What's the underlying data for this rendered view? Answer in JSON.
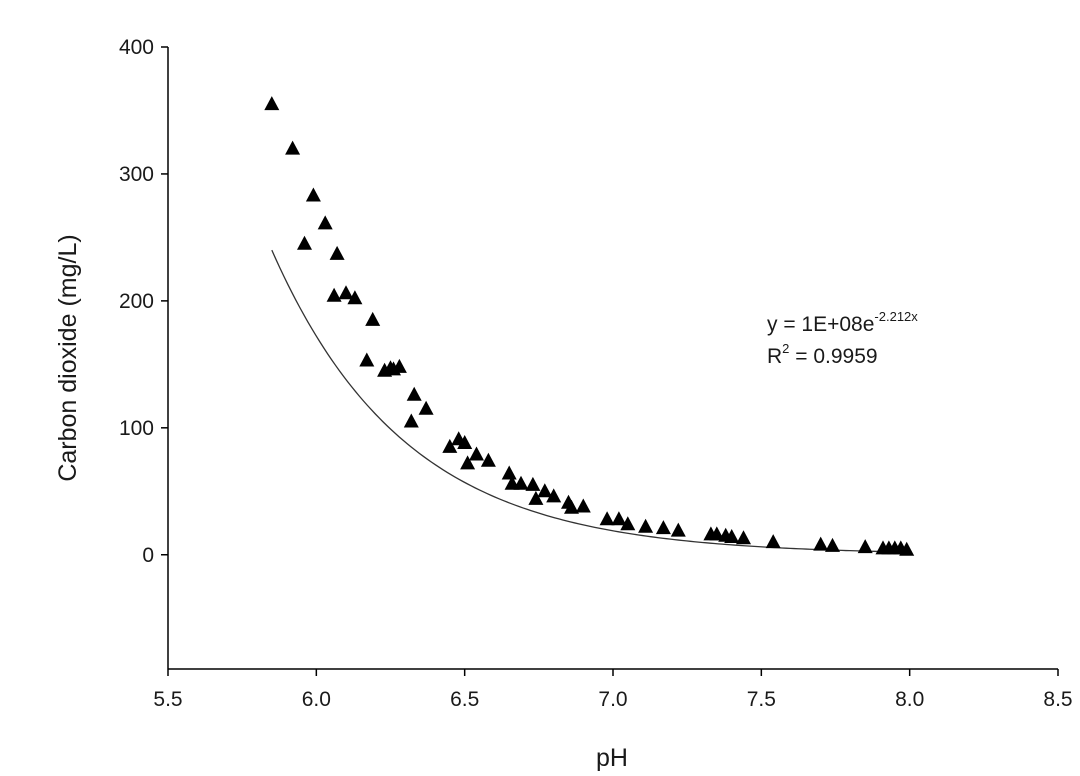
{
  "chart_data": {
    "type": "scatter",
    "title": "",
    "xlabel": "pH",
    "ylabel": "Carbon dioxide (mg/L)",
    "xlim": [
      5.5,
      8.5
    ],
    "ylim": [
      -90,
      400
    ],
    "xticks": [
      5.5,
      6.0,
      6.5,
      7.0,
      7.5,
      8.0,
      8.5
    ],
    "xtick_labels": [
      "5.5",
      "6.0",
      "6.5",
      "7.0",
      "7.5",
      "8.0",
      "8.5"
    ],
    "yticks": [
      0,
      100,
      200,
      300,
      400
    ],
    "ytick_labels": [
      "0",
      "100",
      "200",
      "300",
      "400"
    ],
    "grid": false,
    "legend": "none",
    "marker": "triangle",
    "marker_color": "#000000",
    "series": [
      {
        "x": [
          5.85,
          5.92,
          5.96,
          5.99,
          6.03,
          6.07,
          6.06,
          6.1,
          6.13,
          6.17,
          6.19,
          6.23,
          6.25,
          6.26,
          6.28,
          6.32,
          6.33,
          6.37,
          6.45,
          6.48,
          6.5,
          6.51,
          6.54,
          6.58,
          6.65,
          6.66,
          6.69,
          6.73,
          6.74,
          6.77,
          6.8,
          6.85,
          6.86,
          6.9,
          6.98,
          7.02,
          7.05,
          7.11,
          7.17,
          7.22,
          7.33,
          7.35,
          7.38,
          7.4,
          7.44,
          7.54,
          7.7,
          7.74,
          7.85,
          7.91,
          7.93,
          7.95,
          7.97,
          7.99
        ],
        "y": [
          355,
          320,
          245,
          283,
          261,
          237,
          204,
          206,
          202,
          153,
          185,
          145,
          147,
          146,
          148,
          105,
          126,
          115,
          85,
          91,
          88,
          72,
          79,
          74,
          64,
          56,
          56,
          55,
          44,
          50,
          46,
          41,
          37,
          38,
          28,
          28,
          24,
          22,
          21,
          19,
          16,
          16,
          15,
          14,
          13,
          10,
          8,
          7,
          6,
          5,
          5,
          5,
          5,
          4
        ]
      }
    ],
    "trendline": {
      "type": "exponential",
      "a": 100000000,
      "b": -2.212,
      "x_range": [
        5.85,
        8.0
      ],
      "color": "#333333"
    },
    "annotation": {
      "equation_main": "y = 1E+08e",
      "equation_exp": "-2.212x",
      "r2_label": "R",
      "r2_sup": "2",
      "r2_value": " = 0.9959"
    }
  }
}
